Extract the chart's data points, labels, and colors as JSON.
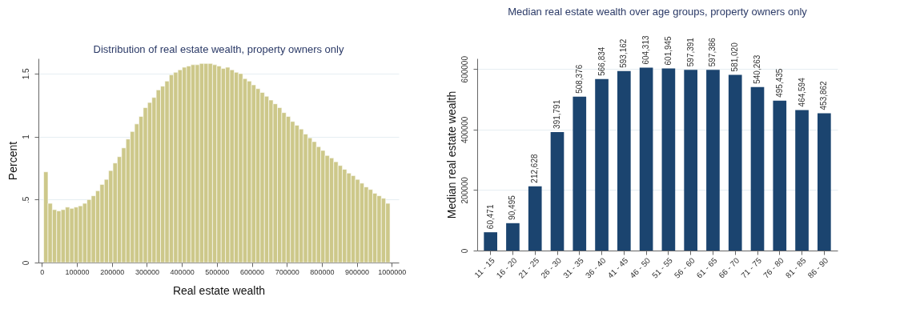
{
  "chart_data": [
    {
      "type": "histogram",
      "title": "Distribution of real estate wealth, property owners only",
      "xlabel": "Real estate wealth",
      "ylabel": "Percent",
      "color": "#cdc88a",
      "bins": [
        5000,
        17375,
        29750,
        42125,
        54500,
        66875,
        79250,
        91625,
        104000,
        116375,
        128750,
        141125,
        153500,
        165875,
        178250,
        190625,
        203000,
        215375,
        227750,
        240125,
        252500,
        264875,
        277250,
        289625,
        302000,
        314375,
        326750,
        339125,
        351500,
        363875,
        376250,
        388625,
        401000,
        413375,
        425750,
        438125,
        450500,
        462875,
        475250,
        487625,
        500000,
        512375,
        524750,
        537125,
        549500,
        561875,
        574250,
        586625,
        599000,
        611375,
        623750,
        636125,
        648500,
        660875,
        673250,
        685625,
        698000,
        710375,
        722750,
        735125,
        747500,
        759875,
        772250,
        784625,
        797000,
        809375,
        821750,
        834125,
        846500,
        858875,
        871250,
        883625,
        896000,
        908375,
        920750,
        933125,
        945500,
        957875,
        970250,
        982625,
        995000
      ],
      "values": [
        0.72,
        0.47,
        0.42,
        0.41,
        0.42,
        0.44,
        0.43,
        0.44,
        0.45,
        0.47,
        0.5,
        0.53,
        0.57,
        0.62,
        0.66,
        0.73,
        0.79,
        0.84,
        0.91,
        0.98,
        1.04,
        1.1,
        1.16,
        1.23,
        1.27,
        1.31,
        1.37,
        1.4,
        1.44,
        1.49,
        1.51,
        1.53,
        1.55,
        1.56,
        1.57,
        1.57,
        1.58,
        1.58,
        1.58,
        1.57,
        1.56,
        1.54,
        1.55,
        1.53,
        1.51,
        1.5,
        1.46,
        1.44,
        1.41,
        1.38,
        1.35,
        1.32,
        1.29,
        1.26,
        1.23,
        1.19,
        1.16,
        1.12,
        1.09,
        1.06,
        1.02,
        0.99,
        0.96,
        0.92,
        0.89,
        0.85,
        0.83,
        0.8,
        0.77,
        0.74,
        0.71,
        0.69,
        0.66,
        0.63,
        0.6,
        0.58,
        0.55,
        0.53,
        0.51,
        0.47
      ],
      "xlim": [
        -10000,
        1020000
      ],
      "xticks": [
        0,
        100000,
        200000,
        300000,
        400000,
        500000,
        600000,
        700000,
        800000,
        900000,
        1000000
      ],
      "ylim": [
        0,
        1.62
      ],
      "yticks": [
        0,
        {
          "value": 0.5,
          "label": ".5"
        },
        1,
        1.5
      ],
      "grid": "y"
    },
    {
      "type": "bar",
      "title": "Median real estate wealth over age groups, property owners only",
      "ylabel": "Median real estate wealth",
      "color": "#1b446f",
      "categories": [
        "11 - 15",
        "16 - 20",
        "21 - 25",
        "26 - 30",
        "31 - 35",
        "36 - 40",
        "41 - 45",
        "46 - 50",
        "51 - 55",
        "56 - 60",
        "61 - 65",
        "66 - 70",
        "71 - 75",
        "76 - 80",
        "81 - 85",
        "86 - 90"
      ],
      "values": [
        60471,
        90495,
        212628,
        391791,
        508376,
        566834,
        593162,
        604313,
        601945,
        597391,
        597386,
        581020,
        540263,
        495435,
        464594,
        453862
      ],
      "value_labels": [
        "60,471",
        "90,495",
        "212,628",
        "391,791",
        "508,376",
        "566,834",
        "593,162",
        "604,313",
        "601,945",
        "597,391",
        "597,386",
        "581,020",
        "540,263",
        "495,435",
        "464,594",
        "453,862"
      ],
      "ylim": [
        0,
        635000
      ],
      "yticks": [
        0,
        200000,
        400000,
        600000
      ],
      "grid": "y"
    }
  ]
}
